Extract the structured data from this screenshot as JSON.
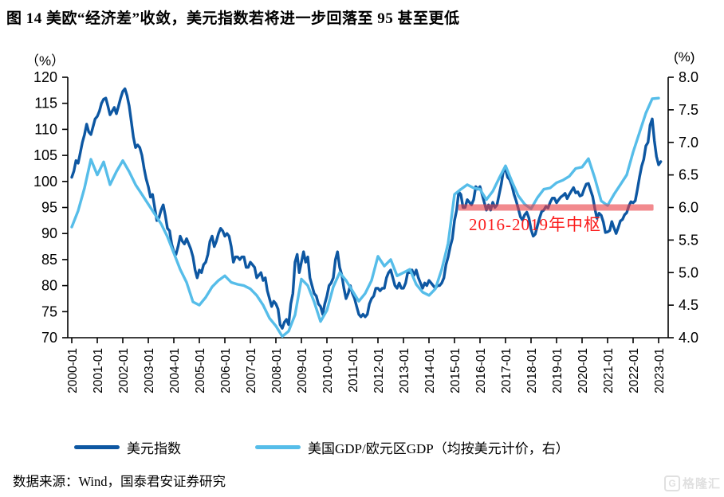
{
  "title": "图 14 美欧“经济差”收敛，美元指数若将进一步回落至 95 甚至更低",
  "source": "数据来源：Wind，国泰君安证券研究",
  "watermark": {
    "logo_letter": "G",
    "text": "格隆汇"
  },
  "chart_data": {
    "type": "line",
    "x_tick_labels": [
      "2000-01",
      "2001-01",
      "2002-01",
      "2003-01",
      "2004-01",
      "2005-01",
      "2006-01",
      "2007-01",
      "2008-01",
      "2009-01",
      "2010-01",
      "2011-01",
      "2012-01",
      "2013-01",
      "2014-01",
      "2015-01",
      "2016-01",
      "2017-01",
      "2018-01",
      "2019-01",
      "2020-01",
      "2021-01",
      "2022-01",
      "2023-01"
    ],
    "left_axis": {
      "unit": "（%）",
      "min": 70,
      "max": 120,
      "ticks": [
        120,
        115,
        110,
        105,
        100,
        95,
        90,
        85,
        80,
        75,
        70
      ]
    },
    "right_axis": {
      "unit": "(%)",
      "min": 4.0,
      "max": 8.0,
      "ticks": [
        "8.0",
        "7.5",
        "7.0",
        "6.5",
        "6.0",
        "5.5",
        "5.0",
        "4.5",
        "4.0"
      ]
    },
    "annotation": {
      "text": "2016-2019年中枢",
      "color": "#fb1c1c",
      "band_axis": "right",
      "band_value": 6.0,
      "band_x_start_year": 2015.15,
      "band_x_end_year": 2022.8,
      "band_color": "rgba(233,60,66,0.6)"
    },
    "legend_position": "bottom",
    "series": [
      {
        "name": "美元指数",
        "axis": "left",
        "color": "#0d57a2",
        "start_year": 2000,
        "points_per_year": 12,
        "values": [
          100.8,
          102.0,
          104.0,
          103.5,
          105.5,
          107.5,
          109.0,
          111.0,
          109.5,
          109.0,
          110.5,
          112.0,
          112.5,
          113.5,
          115.0,
          115.8,
          116.0,
          114.5,
          112.8,
          113.5,
          114.2,
          113.0,
          114.5,
          116.0,
          117.3,
          117.8,
          116.5,
          114.5,
          111.5,
          108.5,
          106.5,
          107.0,
          106.5,
          105.0,
          102.5,
          100.5,
          99.0,
          97.0,
          97.5,
          95.0,
          92.5,
          93.0,
          94.5,
          95.5,
          93.5,
          91.0,
          90.5,
          88.0,
          86.5,
          86.0,
          87.5,
          89.5,
          88.5,
          88.0,
          89.0,
          88.0,
          87.0,
          85.5,
          83.0,
          81.5,
          83.0,
          82.5,
          84.0,
          84.5,
          86.0,
          88.5,
          89.5,
          87.5,
          88.5,
          90.0,
          91.0,
          90.5,
          89.5,
          90.0,
          89.5,
          87.5,
          84.5,
          85.5,
          85.5,
          85.0,
          85.5,
          85.5,
          83.5,
          83.5,
          84.5,
          84.0,
          83.5,
          81.5,
          82.0,
          82.5,
          81.0,
          81.5,
          79.0,
          77.5,
          76.0,
          77.0,
          76.5,
          75.5,
          72.5,
          71.8,
          73.0,
          73.5,
          72.5,
          76.5,
          78.5,
          84.5,
          86.0,
          82.5,
          84.5,
          86.5,
          84.5,
          85.5,
          81.5,
          80.0,
          78.5,
          78.0,
          76.5,
          76.0,
          74.5,
          76.5,
          78.0,
          80.0,
          80.5,
          81.5,
          85.0,
          86.5,
          83.5,
          82.0,
          79.5,
          77.5,
          78.5,
          80.0,
          78.5,
          77.5,
          76.0,
          74.5,
          74.0,
          74.5,
          74.0,
          74.5,
          76.5,
          77.5,
          78.0,
          79.5,
          79.5,
          79.0,
          79.5,
          79.5,
          81.5,
          82.5,
          83.0,
          81.5,
          80.0,
          79.5,
          80.5,
          79.5,
          79.5,
          80.5,
          82.5,
          82.5,
          83.0,
          82.0,
          83.0,
          81.5,
          80.5,
          79.5,
          80.5,
          80.0,
          81.0,
          80.5,
          80.0,
          79.5,
          80.0,
          80.0,
          80.5,
          81.5,
          84.0,
          85.5,
          87.5,
          89.0,
          92.5,
          94.5,
          98.0,
          97.5,
          95.0,
          95.0,
          96.5,
          96.0,
          95.5,
          96.5,
          99.0,
          98.5,
          99.0,
          97.5,
          96.0,
          94.5,
          95.5,
          94.5,
          96.0,
          95.0,
          95.5,
          97.5,
          99.5,
          102.0,
          102.3,
          100.8,
          100.3,
          99.2,
          97.5,
          96.3,
          94.8,
          93.2,
          92.6,
          93.6,
          94.1,
          93.0,
          90.8,
          89.5,
          89.9,
          91.5,
          93.0,
          94.2,
          94.5,
          95.2,
          94.9,
          96.0,
          96.8,
          96.8,
          95.9,
          96.5,
          97.0,
          97.3,
          97.7,
          96.7,
          97.5,
          98.2,
          98.8,
          97.8,
          98.0,
          97.2,
          97.4,
          98.6,
          99.5,
          99.6,
          98.3,
          97.1,
          94.8,
          92.9,
          93.9,
          93.5,
          92.2,
          90.2,
          90.3,
          90.6,
          92.3,
          91.1,
          90.0,
          91.1,
          92.4,
          92.7,
          93.6,
          94.0,
          95.3,
          96.1,
          95.9,
          96.3,
          98.4,
          100.8,
          102.9,
          104.2,
          106.8,
          107.5,
          110.8,
          112.0,
          107.8,
          104.8,
          103.2,
          103.8
        ]
      },
      {
        "name": "美国GDP/欧元区GDP（均按美元计价，右）",
        "axis": "right",
        "color": "#56bde9",
        "start_year": 2000,
        "points_per_year": 4,
        "values": [
          5.7,
          5.95,
          6.3,
          6.74,
          6.5,
          6.7,
          6.35,
          6.55,
          6.72,
          6.55,
          6.35,
          6.2,
          6.05,
          5.9,
          5.75,
          5.55,
          5.3,
          5.05,
          4.85,
          4.55,
          4.5,
          4.62,
          4.78,
          4.88,
          4.95,
          4.85,
          4.82,
          4.8,
          4.75,
          4.65,
          4.5,
          4.3,
          4.18,
          4.02,
          4.1,
          4.35,
          4.9,
          4.8,
          4.55,
          4.25,
          4.42,
          4.78,
          5.0,
          4.88,
          4.72,
          4.56,
          4.68,
          4.88,
          5.25,
          5.1,
          5.2,
          4.95,
          5.0,
          5.05,
          4.82,
          4.7,
          4.65,
          4.75,
          5.05,
          5.45,
          6.2,
          6.28,
          6.35,
          6.3,
          6.28,
          6.12,
          6.25,
          6.45,
          6.64,
          6.4,
          6.18,
          6.05,
          5.98,
          6.15,
          6.28,
          6.3,
          6.38,
          6.42,
          6.48,
          6.6,
          6.62,
          6.75,
          6.45,
          6.1,
          6.03,
          6.2,
          6.35,
          6.5,
          6.85,
          7.15,
          7.45,
          7.67,
          7.68
        ]
      }
    ]
  }
}
